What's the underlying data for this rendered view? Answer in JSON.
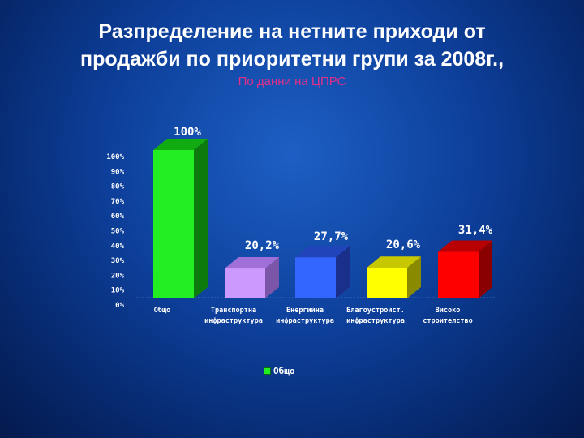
{
  "header": {
    "title_line1": "Разпределение на нетните приходи от",
    "title_line2": "продажби по приоритетни групи   за 2008г.,",
    "subtitle": "По данни на ЦПРС"
  },
  "chart_data": {
    "type": "bar",
    "categories": [
      [
        "Общо"
      ],
      [
        "Транспортна",
        "инфраструктура"
      ],
      [
        "Енергийна",
        "инфраструктура"
      ],
      [
        "Благоустройст.",
        "инфраструктура"
      ],
      [
        "Високо",
        "строителство"
      ]
    ],
    "values": [
      100,
      20.2,
      27.7,
      20.6,
      31.4
    ],
    "value_labels": [
      "100%",
      "20,2%",
      "27,7%",
      "20,6%",
      "31,4%"
    ],
    "colors": [
      "#22ee22",
      "#cc99ff",
      "#3366ff",
      "#ffff00",
      "#ff0000"
    ],
    "side_colors": [
      "#0d7a0d",
      "#7a55a8",
      "#1a2f8a",
      "#8a8a00",
      "#8a0000"
    ],
    "top_colors": [
      "#11aa11",
      "#a070d8",
      "#2244bb",
      "#c8c800",
      "#b80000"
    ],
    "yticks": [
      "100%",
      "90%",
      "80%",
      "70%",
      "60%",
      "50%",
      "40%",
      "30%",
      "20%",
      "10%",
      "0%"
    ],
    "ylim": [
      0,
      100
    ],
    "series": [
      {
        "name": "Общо",
        "values": [
          100,
          20.2,
          27.7,
          20.6,
          31.4
        ]
      }
    ],
    "legend_position": "bottom",
    "grid": false
  }
}
